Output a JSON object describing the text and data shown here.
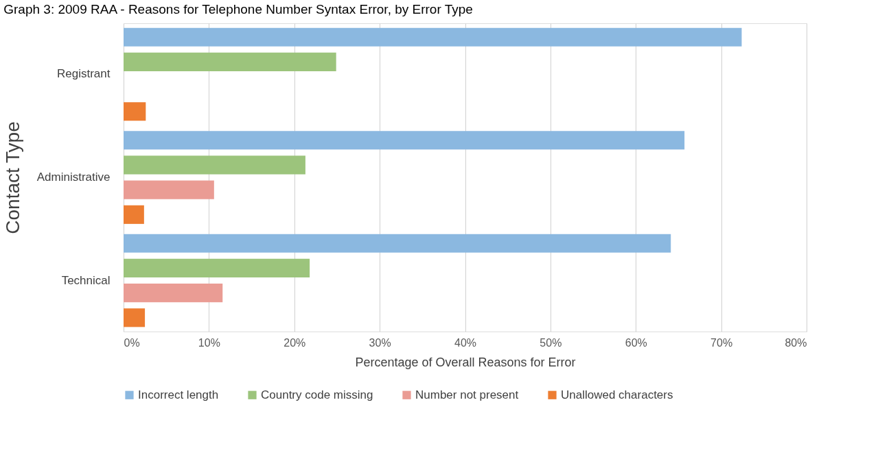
{
  "chart_data": {
    "type": "bar",
    "orientation": "horizontal",
    "title": "Graph 3: 2009 RAA - Reasons for Telephone Number Syntax Error, by Error Type",
    "xlabel": "Percentage of Overall Reasons for Error",
    "ylabel": "Contact Type",
    "categories": [
      "Registrant",
      "Administrative",
      "Technical"
    ],
    "series": [
      {
        "name": "Incorrect length",
        "color": "#8bb8e0",
        "values": [
          72.4,
          65.7,
          64.1
        ]
      },
      {
        "name": "Country code missing",
        "color": "#9cc47c",
        "values": [
          24.9,
          21.3,
          21.8
        ]
      },
      {
        "name": "Number not present",
        "color": "#ea9c94",
        "values": [
          null,
          10.6,
          11.6
        ]
      },
      {
        "name": "Unallowed characters",
        "color": "#ed7d31",
        "values": [
          2.6,
          2.4,
          2.5
        ]
      }
    ],
    "xlim": [
      0,
      80
    ],
    "xticks": [
      {
        "value": 0,
        "label": "0%"
      },
      {
        "value": 10,
        "label": "10%"
      },
      {
        "value": 20,
        "label": "20%"
      },
      {
        "value": 30,
        "label": "30%"
      },
      {
        "value": 40,
        "label": "40%"
      },
      {
        "value": 50,
        "label": "50%"
      },
      {
        "value": 60,
        "label": "60%"
      },
      {
        "value": 70,
        "label": "70%"
      },
      {
        "value": 80,
        "label": "80%"
      }
    ],
    "grid": "x",
    "legend": "bottom"
  }
}
